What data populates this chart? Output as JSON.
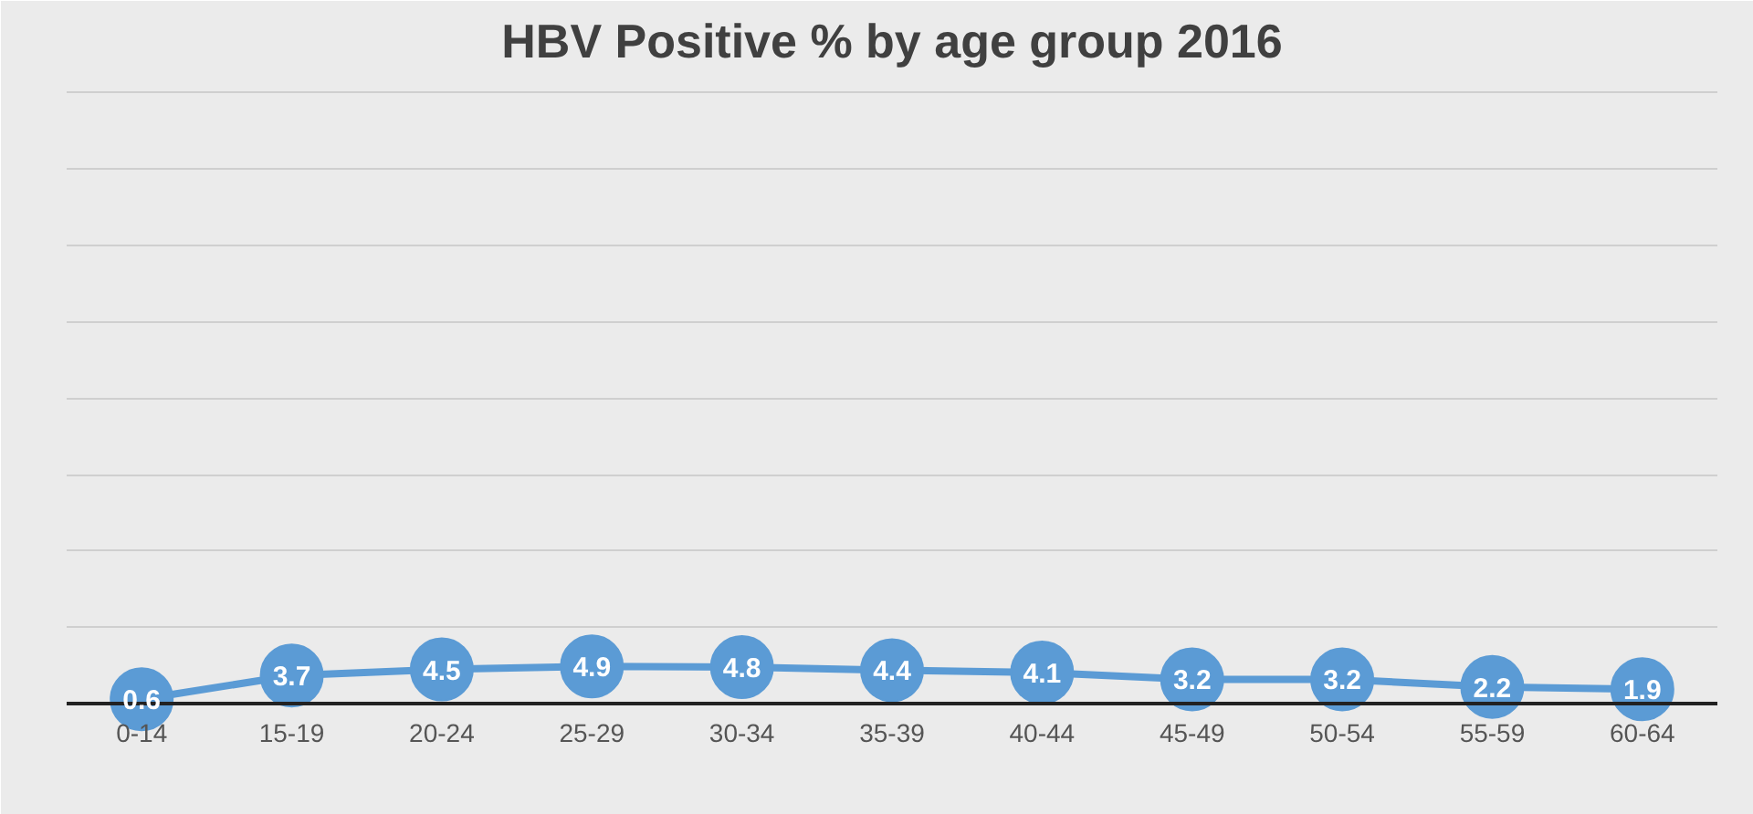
{
  "chart_data": {
    "type": "line",
    "title": "HBV Positive % by age group 2016",
    "categories": [
      "0-14",
      "15-19",
      "20-24",
      "25-29",
      "30-34",
      "35-39",
      "40-44",
      "45-49",
      "50-54",
      "55-59",
      "60-64"
    ],
    "series": [
      {
        "color": "#5b9bd5",
        "values": [
          0.6,
          3.7,
          4.5,
          4.9,
          4.8,
          4.4,
          4.1,
          3.2,
          3.2,
          2.2,
          1.9
        ]
      }
    ],
    "ylim": [
      0,
      82
    ],
    "yticks": [
      {
        "value": 0,
        "label": null
      },
      {
        "value": 10,
        "label": null
      },
      {
        "value": 20,
        "label": null
      },
      {
        "value": 30,
        "label": null
      },
      {
        "value": 40,
        "label": null
      },
      {
        "value": 50,
        "label": null
      },
      {
        "value": 60,
        "label": null
      },
      {
        "value": 70,
        "label": null
      },
      {
        "value": 80,
        "label": null
      }
    ],
    "tick_labels": "x",
    "grid": "y",
    "marker": "circle",
    "line_style": "solid",
    "data_labels": true
  }
}
